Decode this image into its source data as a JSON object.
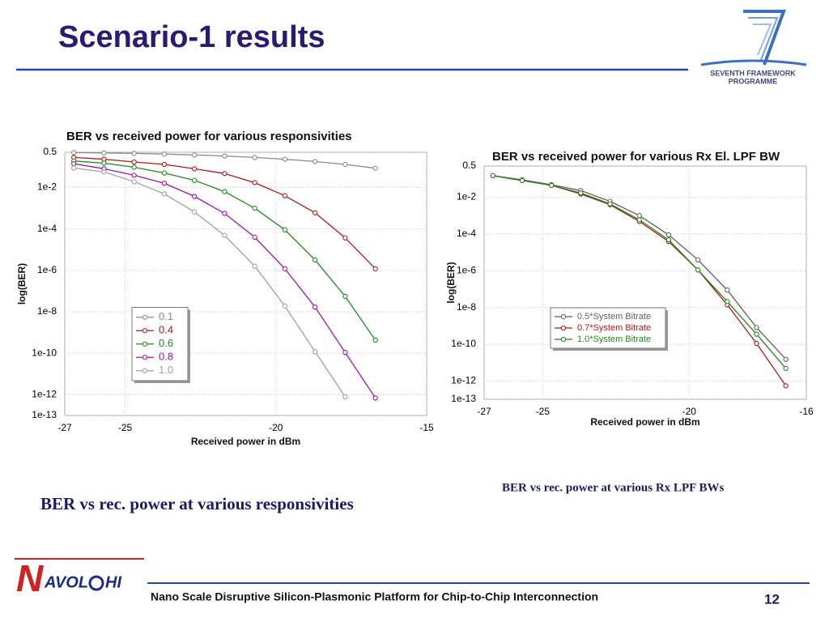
{
  "title": "Scenario-1 results",
  "logo_fp7": {
    "line1": "SEVENTH FRAMEWORK",
    "line2": "PROGRAMME"
  },
  "chart_data": [
    {
      "type": "line",
      "title": "BER vs received power for various responsivities",
      "xlabel": "Received power in dBm",
      "ylabel": "log(BER)",
      "log_y": true,
      "grid": true,
      "legend": "lower left",
      "x": [
        -26.7,
        -25.7,
        -24.7,
        -23.7,
        -22.7,
        -21.7,
        -20.7,
        -19.7,
        -18.7,
        -17.7,
        -16.7
      ],
      "series": [
        {
          "name": "0.1",
          "color": "#8a8a8a",
          "values": [
            0.48,
            0.46,
            0.44,
            0.41,
            0.37,
            0.33,
            0.28,
            0.23,
            0.18,
            0.13,
            0.085
          ]
        },
        {
          "name": "0.4",
          "color": "#b01818",
          "values": [
            0.28,
            0.23,
            0.17,
            0.13,
            0.08,
            0.047,
            0.017,
            0.004,
            0.0006,
            3.7e-05,
            1.2e-06
          ]
        },
        {
          "name": "0.6",
          "color": "#1e8a1e",
          "values": [
            0.19,
            0.15,
            0.095,
            0.05,
            0.022,
            0.0063,
            0.001,
            9e-05,
            3.2e-06,
            5.6e-08,
            4.3e-10
          ]
        },
        {
          "name": "0.8",
          "color": "#a010b0",
          "values": [
            0.14,
            0.08,
            0.039,
            0.016,
            0.0037,
            0.00056,
            4e-05,
            1.2e-06,
            1.7e-08,
            1.1e-10,
            7e-13
          ]
        },
        {
          "name": "1.0",
          "color": "#a0a0a0",
          "values": [
            0.087,
            0.056,
            0.019,
            0.0049,
            0.00066,
            4.9e-05,
            1.6e-06,
            1.9e-08,
            1.2e-10,
            7.9e-13,
            null
          ]
        }
      ],
      "xlim": [
        -27,
        -15
      ],
      "xticks": [
        -27,
        -25,
        -20,
        -15
      ],
      "ylim": [
        1e-13,
        0.5
      ],
      "yticks": [
        0.5,
        {
          "value": 0.01,
          "label": "1e-2"
        },
        {
          "value": 0.0001,
          "label": "1e-4"
        },
        {
          "value": 1e-06,
          "label": "1e-6"
        },
        {
          "value": 1e-08,
          "label": "1e-8"
        },
        {
          "value": 1e-10,
          "label": "1e-10"
        },
        {
          "value": 1e-12,
          "label": "1e-12"
        },
        {
          "value": 1e-13,
          "label": "1e-13"
        }
      ]
    },
    {
      "type": "line",
      "title": "BER vs received power for various Rx El. LPF BW",
      "xlabel": "Received power in dBm",
      "ylabel": "log(BER)",
      "log_y": true,
      "grid": true,
      "legend": "center left",
      "x": [
        -26.7,
        -25.7,
        -24.7,
        -23.7,
        -22.7,
        -21.7,
        -20.7,
        -19.7,
        -18.7,
        -17.7,
        -16.7
      ],
      "series": [
        {
          "name": "0.5*System Bitrate",
          "color": "#606060",
          "values": [
            0.15,
            0.089,
            0.048,
            0.023,
            0.0059,
            0.001,
            9e-05,
            3.9e-06,
            8.9e-08,
            8.1e-10,
            1.5e-11
          ]
        },
        {
          "name": "0.7*System Bitrate",
          "color": "#b01818",
          "values": [
            0.15,
            0.081,
            0.044,
            0.015,
            0.0039,
            0.00048,
            3.9e-05,
            1.1e-06,
            1.4e-08,
            1.1e-10,
            5.4e-13
          ]
        },
        {
          "name": "1.0*System Bitrate",
          "color": "#1e8a1e",
          "values": [
            0.15,
            0.081,
            0.044,
            0.017,
            0.0043,
            0.00059,
            4.8e-05,
            1.1e-06,
            2.1e-08,
            3.5e-10,
            4.8e-12
          ]
        }
      ],
      "xlim": [
        -27,
        -16
      ],
      "xticks": [
        -27,
        -25,
        -20,
        -16
      ],
      "ylim": [
        1e-13,
        0.5
      ],
      "yticks": [
        0.5,
        {
          "value": 0.01,
          "label": "1e-2"
        },
        {
          "value": 0.0001,
          "label": "1e-4"
        },
        {
          "value": 1e-06,
          "label": "1e-6"
        },
        {
          "value": 1e-08,
          "label": "1e-8"
        },
        {
          "value": 1e-10,
          "label": "1e-10"
        },
        {
          "value": 1e-12,
          "label": "1e-12"
        },
        {
          "value": 1e-13,
          "label": "1e-13"
        }
      ]
    }
  ],
  "captions": [
    "BER vs rec. power at various responsivities",
    "BER vs rec. power at various Rx LPF BWs"
  ],
  "logo_navolchi": {
    "initial": "N",
    "part1": "AVOL",
    "part2": "HI"
  },
  "footer": "Nano Scale Disruptive Silicon-Plasmonic Platform for Chip-to-Chip Interconnection",
  "page_number": 12
}
